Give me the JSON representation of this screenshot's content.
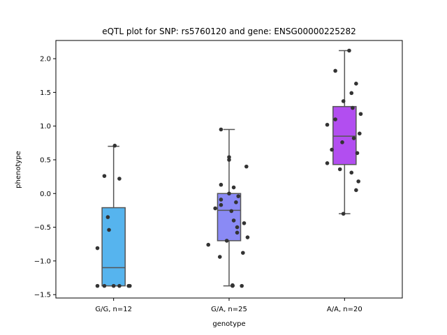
{
  "chart_data": {
    "type": "box",
    "title": "eQTL plot for SNP: rs5760120 and gene: ENSG00000225282",
    "xlabel": "genotype",
    "ylabel": "phenotype",
    "ylim": [
      -1.55,
      2.27
    ],
    "yticks": [
      -1.5,
      -1.0,
      -0.5,
      0.0,
      0.5,
      1.0,
      1.5,
      2.0
    ],
    "ytick_labels": [
      "−1.5",
      "−1.0",
      "−0.5",
      "0.0",
      "0.5",
      "1.0",
      "1.5",
      "2.0"
    ],
    "grid": false,
    "categories": [
      "G/G, n=12",
      "G/A, n=25",
      "A/A, n=20"
    ],
    "colors": [
      "#56b4ee",
      "#8a8af5",
      "#b24ef0"
    ],
    "box_edge_color": "#555555",
    "point_color": "#333333",
    "boxes": [
      {
        "q1": -1.37,
        "median": -1.1,
        "q3": -0.21,
        "whisker_low": -1.37,
        "whisker_high": 0.7
      },
      {
        "q1": -0.7,
        "median": -0.25,
        "q3": 0.0,
        "whisker_low": -1.37,
        "whisker_high": 0.95
      },
      {
        "q1": 0.43,
        "median": 0.85,
        "q3": 1.29,
        "whisker_low": -0.3,
        "whisker_high": 2.12
      }
    ],
    "points": [
      [
        {
          "x": 0.01,
          "y": 0.71
        },
        {
          "x": -0.08,
          "y": 0.26
        },
        {
          "x": 0.05,
          "y": 0.22
        },
        {
          "x": -0.05,
          "y": -0.35
        },
        {
          "x": -0.04,
          "y": -0.54
        },
        {
          "x": -0.14,
          "y": -0.81
        },
        {
          "x": -0.14,
          "y": -1.37
        },
        {
          "x": -0.08,
          "y": -1.37
        },
        {
          "x": 0.0,
          "y": -1.37
        },
        {
          "x": 0.05,
          "y": -1.37
        },
        {
          "x": 0.13,
          "y": -1.37
        },
        {
          "x": 0.14,
          "y": -1.37
        }
      ],
      [
        {
          "x": -0.07,
          "y": 0.95
        },
        {
          "x": 0.0,
          "y": 0.54
        },
        {
          "x": 0.0,
          "y": 0.5
        },
        {
          "x": 0.15,
          "y": 0.4
        },
        {
          "x": -0.07,
          "y": 0.13
        },
        {
          "x": 0.04,
          "y": 0.09
        },
        {
          "x": 0.0,
          "y": 0.0
        },
        {
          "x": 0.08,
          "y": -0.04
        },
        {
          "x": -0.07,
          "y": -0.09
        },
        {
          "x": 0.06,
          "y": -0.13
        },
        {
          "x": -0.07,
          "y": -0.17
        },
        {
          "x": -0.12,
          "y": -0.22
        },
        {
          "x": 0.02,
          "y": -0.26
        },
        {
          "x": 0.04,
          "y": -0.4
        },
        {
          "x": 0.13,
          "y": -0.44
        },
        {
          "x": 0.07,
          "y": -0.5
        },
        {
          "x": 0.07,
          "y": -0.58
        },
        {
          "x": 0.16,
          "y": -0.65
        },
        {
          "x": -0.02,
          "y": -0.7
        },
        {
          "x": -0.18,
          "y": -0.76
        },
        {
          "x": 0.12,
          "y": -0.88
        },
        {
          "x": -0.08,
          "y": -0.94
        },
        {
          "x": 0.03,
          "y": -1.37
        },
        {
          "x": 0.11,
          "y": -1.37
        },
        {
          "x": 0.03,
          "y": -1.36
        }
      ],
      [
        {
          "x": 0.04,
          "y": 2.12
        },
        {
          "x": -0.08,
          "y": 1.82
        },
        {
          "x": 0.1,
          "y": 1.63
        },
        {
          "x": 0.06,
          "y": 1.49
        },
        {
          "x": -0.01,
          "y": 1.37
        },
        {
          "x": 0.07,
          "y": 1.27
        },
        {
          "x": 0.14,
          "y": 1.18
        },
        {
          "x": -0.08,
          "y": 1.1
        },
        {
          "x": -0.15,
          "y": 1.02
        },
        {
          "x": 0.13,
          "y": 0.89
        },
        {
          "x": 0.08,
          "y": 0.82
        },
        {
          "x": -0.02,
          "y": 0.76
        },
        {
          "x": -0.11,
          "y": 0.65
        },
        {
          "x": 0.11,
          "y": 0.6
        },
        {
          "x": -0.15,
          "y": 0.45
        },
        {
          "x": -0.04,
          "y": 0.36
        },
        {
          "x": 0.06,
          "y": 0.31
        },
        {
          "x": 0.12,
          "y": 0.18
        },
        {
          "x": 0.1,
          "y": 0.05
        },
        {
          "x": -0.01,
          "y": -0.3
        }
      ]
    ]
  }
}
